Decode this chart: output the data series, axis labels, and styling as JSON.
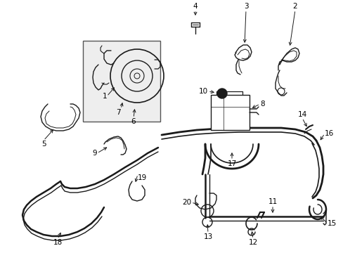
{
  "background_color": "#ffffff",
  "line_color": "#1a1a1a",
  "label_color": "#000000",
  "lw": 1.0,
  "font_size": 7.5,
  "fig_w": 4.89,
  "fig_h": 3.6,
  "dpi": 100
}
